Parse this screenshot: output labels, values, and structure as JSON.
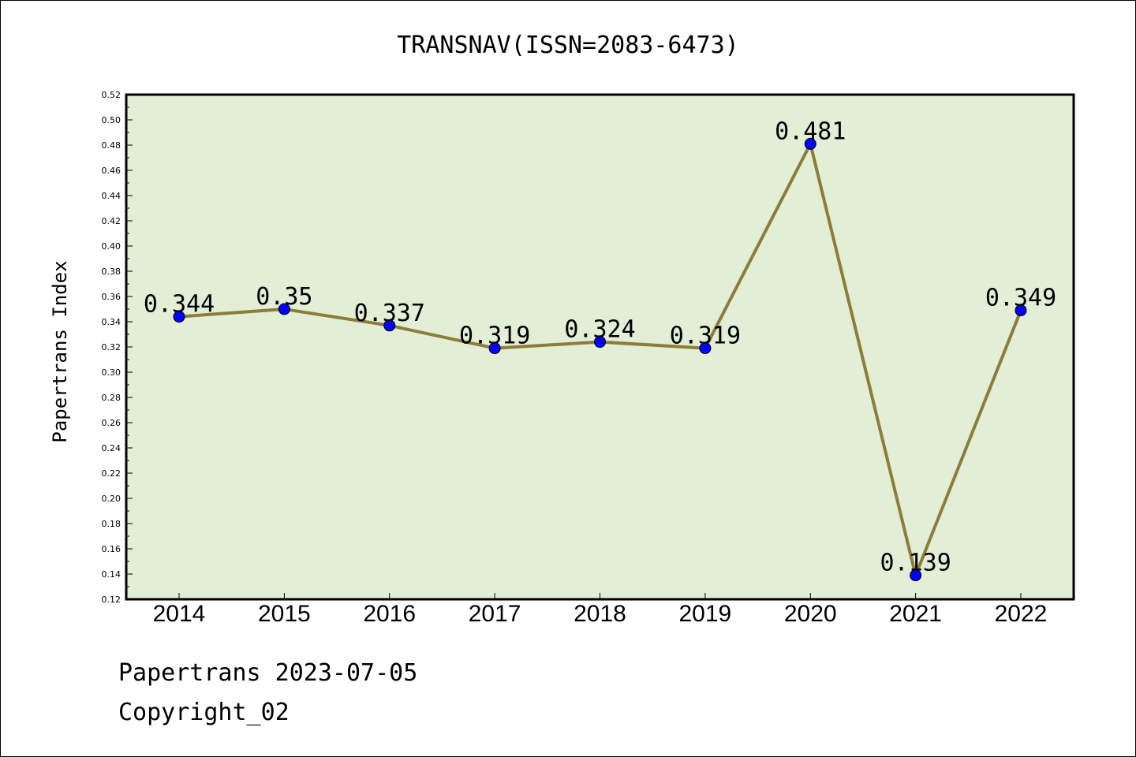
{
  "chart_data": {
    "type": "line",
    "title": "TRANSNAV(ISSN=2083-6473)",
    "ylabel": "Papertrans Index",
    "xlabel": "",
    "categories": [
      "2014",
      "2015",
      "2016",
      "2017",
      "2018",
      "2019",
      "2020",
      "2021",
      "2022"
    ],
    "series": [
      {
        "values": [
          0.344,
          0.35,
          0.337,
          0.319,
          0.324,
          0.319,
          0.481,
          0.139,
          0.349
        ],
        "labels": [
          "0.344",
          "0.35",
          "0.337",
          "0.319",
          "0.324",
          "0.319",
          "0.481",
          "0.139",
          "0.349"
        ],
        "line_color": "#8B7D3A",
        "marker_color": "#0000FF"
      }
    ],
    "ylim": [
      0.12,
      0.52
    ],
    "yticks": [
      "0.12",
      "0.14",
      "0.16",
      "0.18",
      "0.20",
      "0.22",
      "0.24",
      "0.26",
      "0.28",
      "0.30",
      "0.32",
      "0.34",
      "0.36",
      "0.38",
      "0.40",
      "0.42",
      "0.44",
      "0.46",
      "0.48",
      "0.50",
      "0.52"
    ],
    "grid": false,
    "legend": "none",
    "plot_background": "#E2EED5"
  },
  "footer": {
    "date_line": "Papertrans 2023-07-05",
    "copyright": "Copyright_02"
  }
}
